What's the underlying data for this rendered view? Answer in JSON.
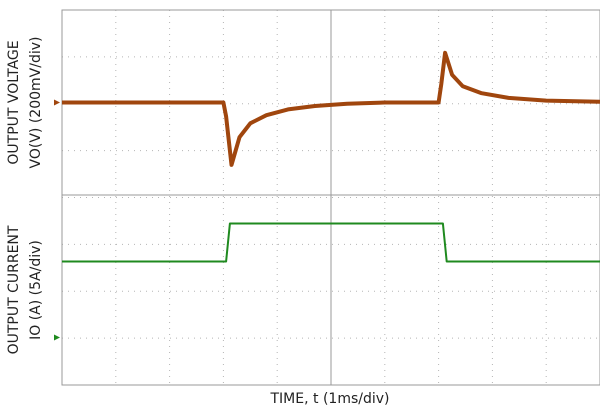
{
  "chart_data": [
    {
      "type": "line",
      "y_label": [
        "OUTPUT VOLTAGE",
        "VO(V) (200mV/div)"
      ],
      "color": "#a0460e",
      "x": [
        0,
        1,
        2,
        2.9,
        3.0,
        3.05,
        3.15,
        3.3,
        3.5,
        3.8,
        4.2,
        4.7,
        5.3,
        6,
        6.5,
        7.0,
        7.05,
        7.12,
        7.25,
        7.45,
        7.8,
        8.3,
        9,
        10
      ],
      "values": [
        0,
        0,
        0,
        0,
        0,
        -60,
        -270,
        -150,
        -90,
        -55,
        -30,
        -15,
        -5,
        0,
        0,
        0,
        80,
        215,
        120,
        70,
        40,
        20,
        8,
        3
      ],
      "xlim": [
        0,
        10
      ],
      "ylim": [
        -400,
        400
      ]
    },
    {
      "type": "line",
      "y_label": [
        "OUTPUT CURRENT",
        "IO (A) (5A/div)"
      ],
      "x_label": "TIME, t (1ms/div)",
      "color": "#1f8a1f",
      "x": [
        0,
        3.05,
        3.12,
        7.08,
        7.15,
        10
      ],
      "values": [
        8,
        8,
        12,
        12,
        8,
        8
      ],
      "xlim": [
        0,
        10
      ],
      "ylim": [
        -5,
        15
      ]
    }
  ]
}
